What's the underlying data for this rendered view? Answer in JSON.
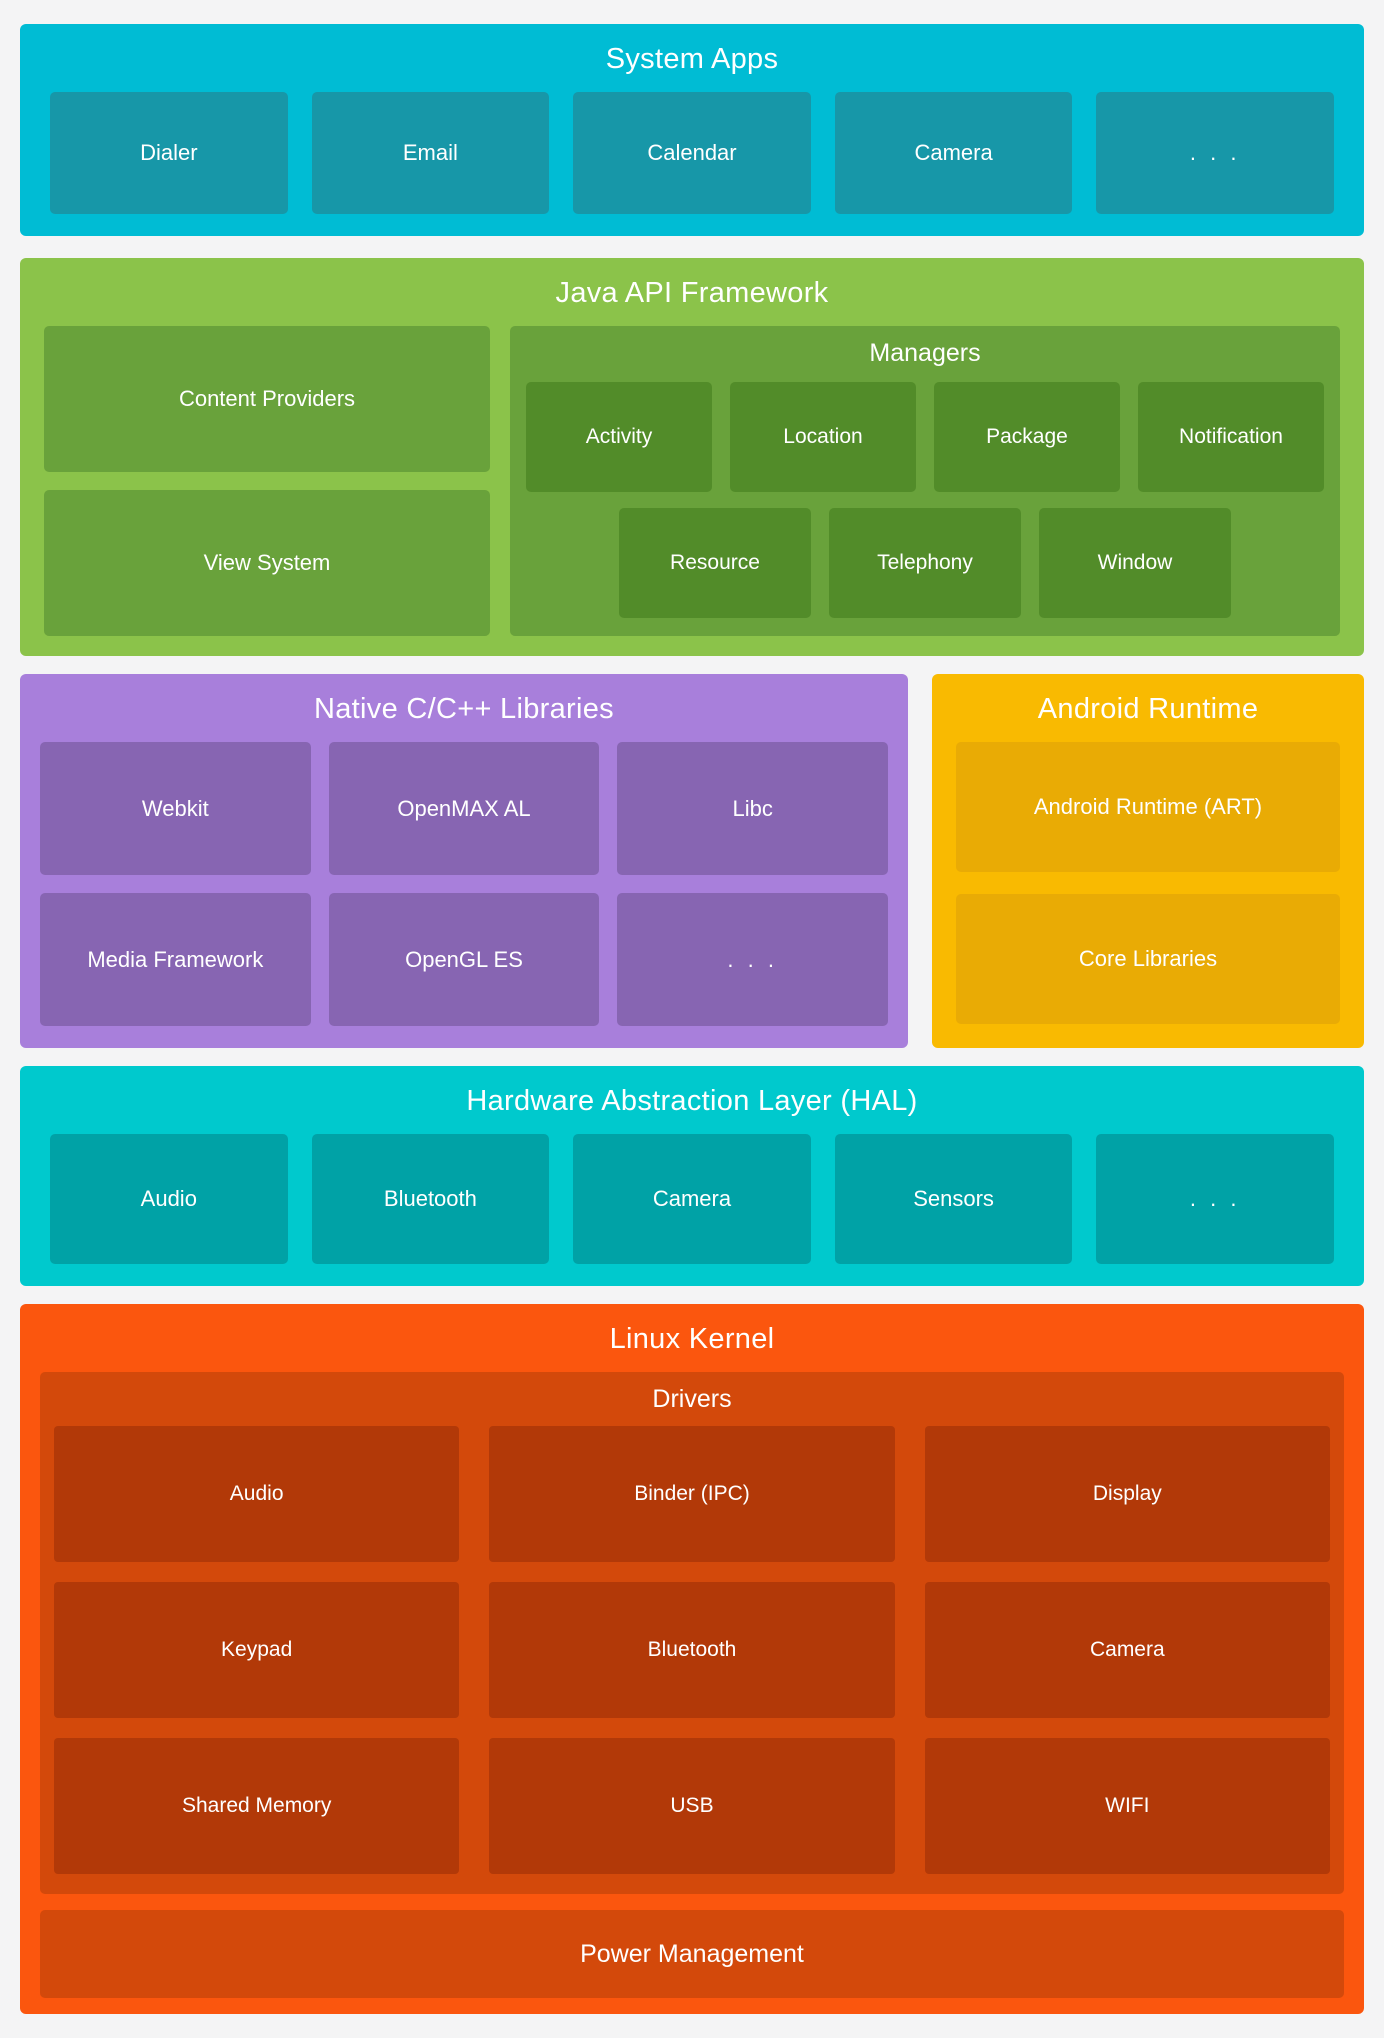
{
  "colors": {
    "page_bg": "#f4f4f5",
    "text": "#ffffff",
    "system_apps_bg": "#00bcd4",
    "system_apps_box": "#1797a8",
    "java_bg": "#8bc34a",
    "java_panel": "#69a23b",
    "java_inner_box": "#528c29",
    "native_bg": "#a87fdb",
    "native_box": "#8765b2",
    "runtime_bg": "#f9ba01",
    "runtime_box": "#e9ab05",
    "hal_bg": "#00c9cd",
    "hal_box": "#00a2a6",
    "kernel_bg": "#fb560e",
    "kernel_panel": "#d3490b",
    "kernel_box": "#b23908"
  },
  "system_apps": {
    "title": "System Apps",
    "items": [
      "Dialer",
      "Email",
      "Calendar",
      "Camera",
      ". . ."
    ]
  },
  "java_api": {
    "title": "Java API Framework",
    "left_items": [
      "Content Providers",
      "View System"
    ],
    "managers": {
      "title": "Managers",
      "row1": [
        "Activity",
        "Location",
        "Package",
        "Notification"
      ],
      "row2": [
        "Resource",
        "Telephony",
        "Window"
      ]
    }
  },
  "native_libs": {
    "title": "Native C/C++ Libraries",
    "row1": [
      "Webkit",
      "OpenMAX AL",
      "Libc"
    ],
    "row2": [
      "Media Framework",
      "OpenGL ES",
      ". . ."
    ]
  },
  "android_runtime": {
    "title": "Android Runtime",
    "items": [
      "Android Runtime (ART)",
      "Core Libraries"
    ]
  },
  "hal": {
    "title": "Hardware Abstraction Layer (HAL)",
    "items": [
      "Audio",
      "Bluetooth",
      "Camera",
      "Sensors",
      ". . ."
    ]
  },
  "linux_kernel": {
    "title": "Linux Kernel",
    "drivers": {
      "title": "Drivers",
      "row1": [
        "Audio",
        "Binder (IPC)",
        "Display"
      ],
      "row2": [
        "Keypad",
        "Bluetooth",
        "Camera"
      ],
      "row3": [
        "Shared Memory",
        "USB",
        "WIFI"
      ]
    },
    "power": "Power Management"
  }
}
